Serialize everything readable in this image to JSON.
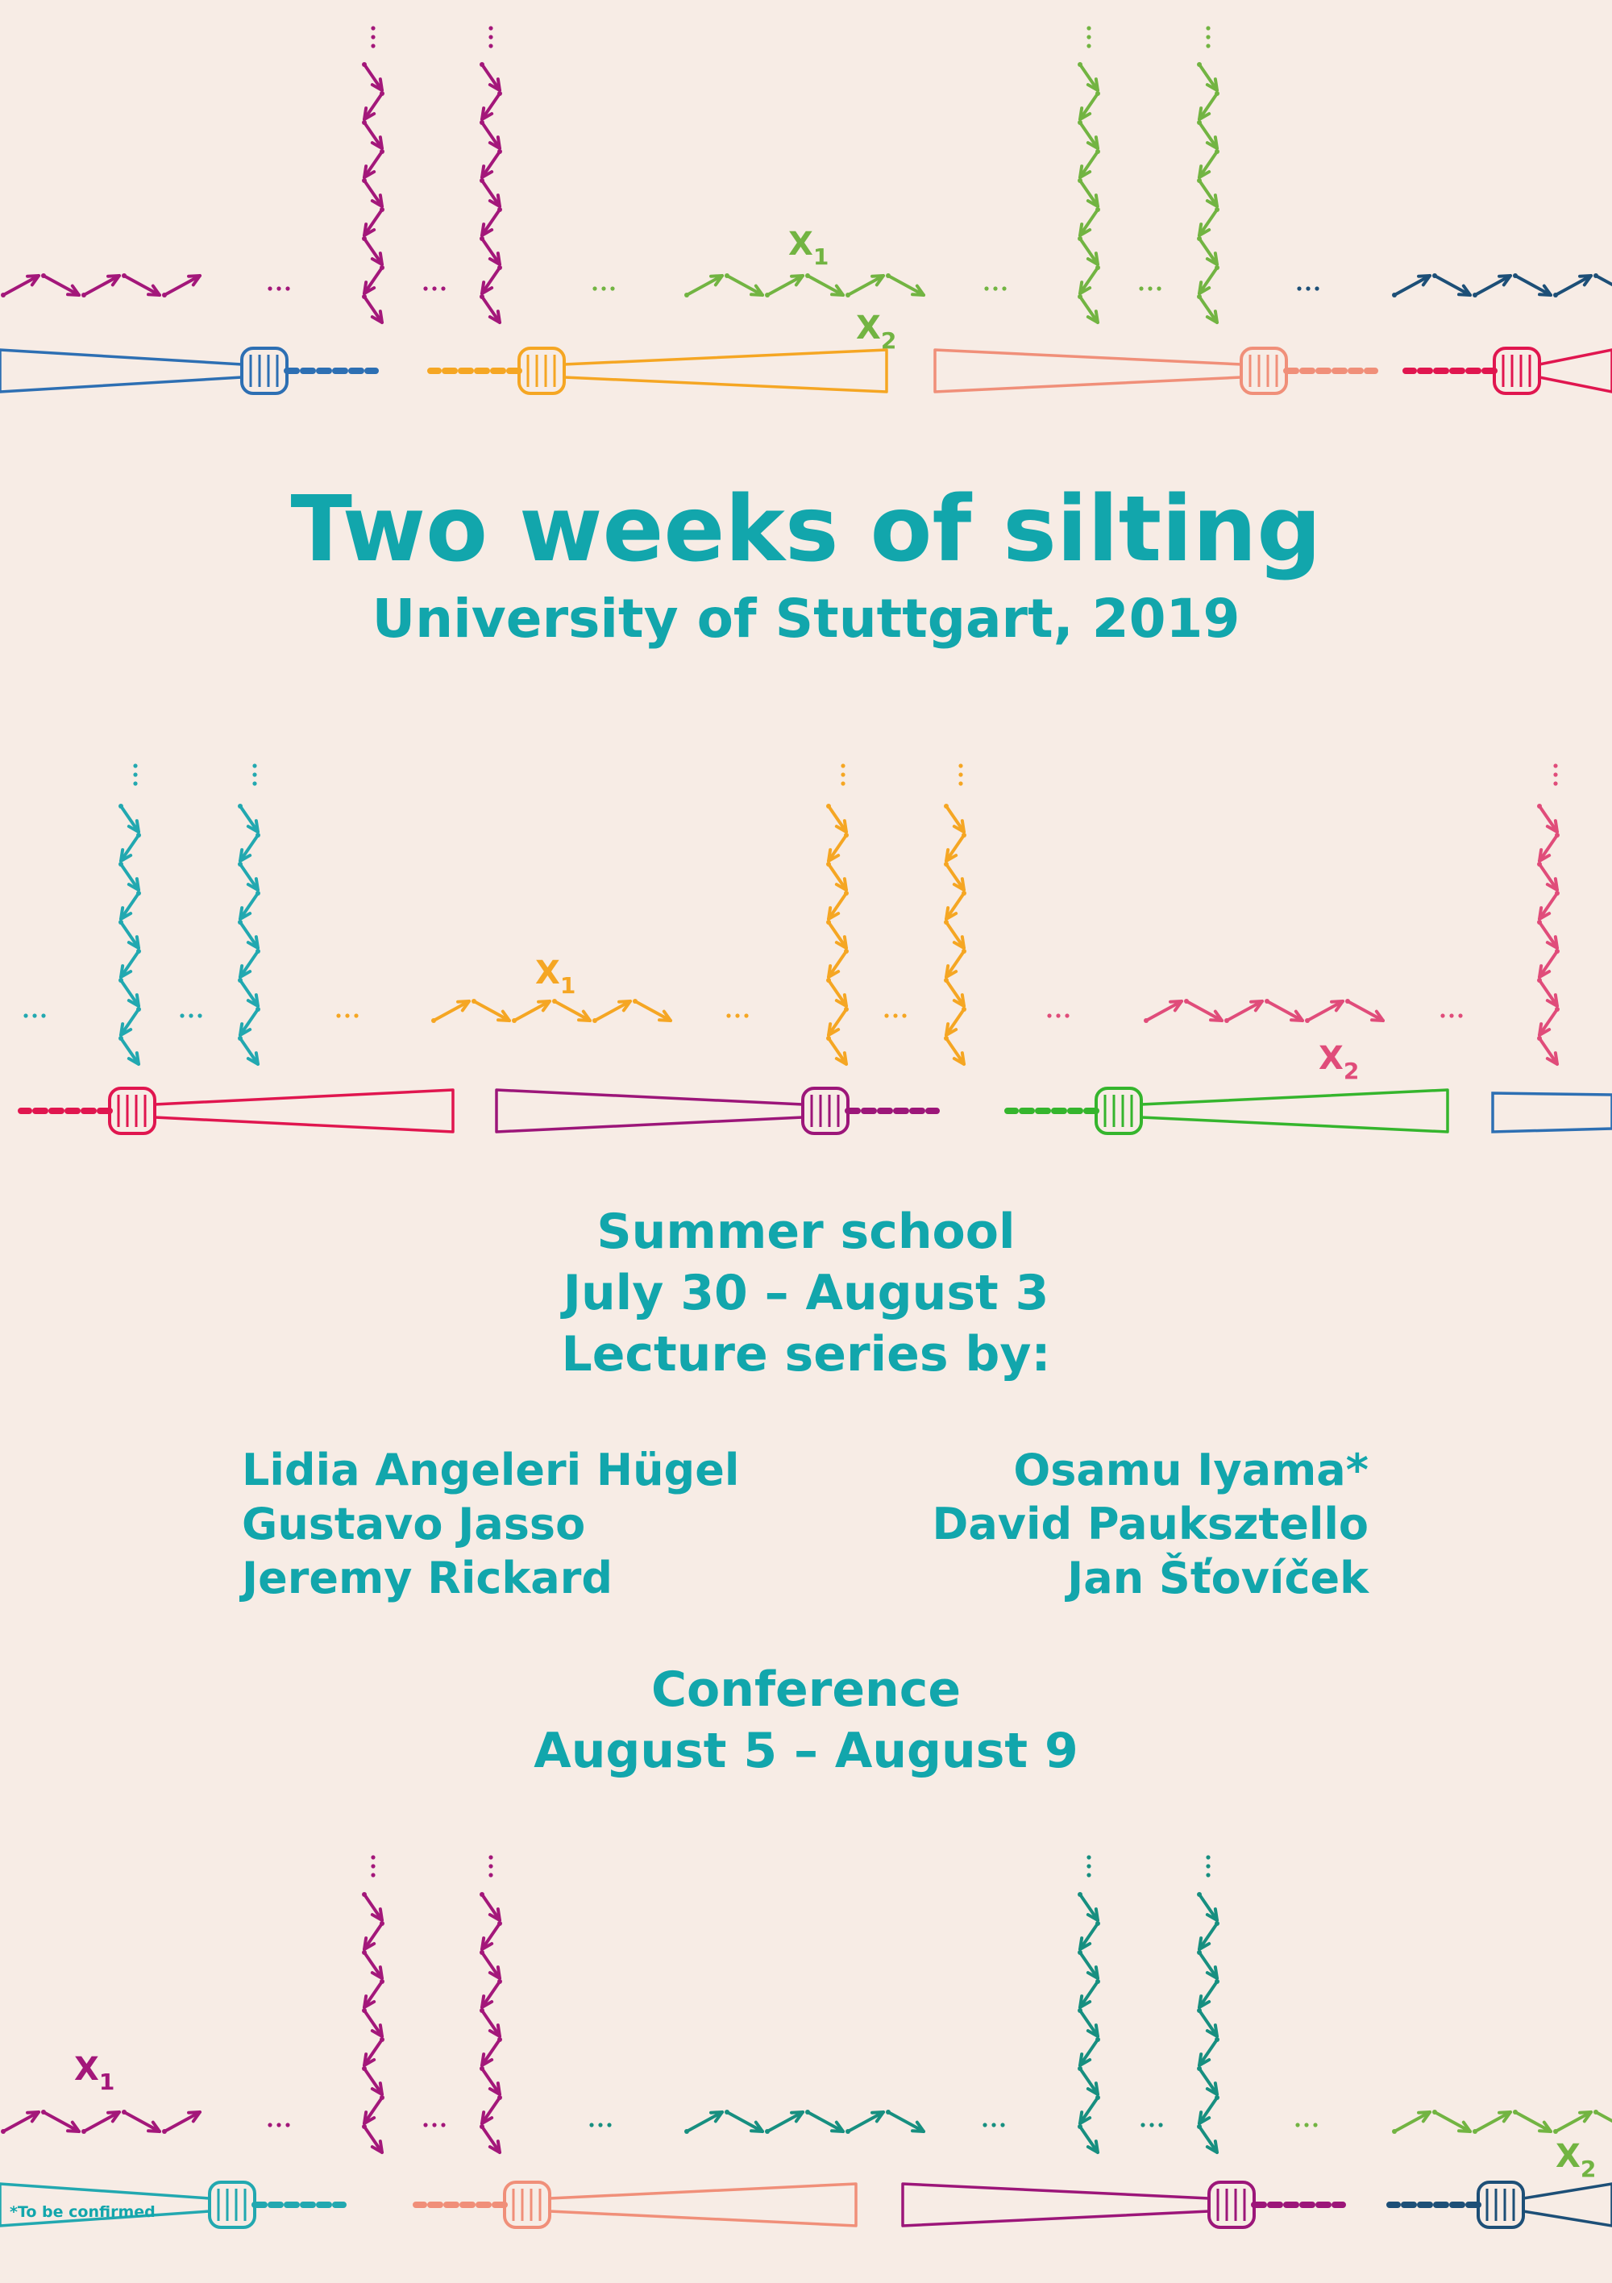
{
  "poster": {
    "title": "Two weeks of silting",
    "subtitle": "University of Stuttgart, 2019",
    "summer_school": {
      "heading": "Summer school",
      "dates": "July 30 – August 3",
      "lectures_heading": "Lecture series by:"
    },
    "lecturers_left": [
      "Lidia Angeleri Hügel",
      "Gustavo Jasso",
      "Jeremy Rickard"
    ],
    "lecturers_right": [
      "Osamu Iyama*",
      "David Pauksztello",
      "Jan Šťovíček"
    ],
    "conference": {
      "heading": "Conference",
      "dates": "August 5 – August 9"
    },
    "footnote": "*To be confirmed",
    "quiver_labels": {
      "x1": "X",
      "x1_sub": "1",
      "x2": "X",
      "x2_sub": "2"
    }
  },
  "colors": {
    "background": "#f7ece5",
    "text": "#12a6ac",
    "magenta": "#a3177a",
    "green": "#72b442",
    "navy": "#1d4f77",
    "teal": "#22a8b0",
    "orange": "#f5a623",
    "pink": "#e04c7a",
    "blue": "#2d6fb3",
    "salmon": "#f08f79",
    "red": "#e0164f",
    "purple": "#9c1679",
    "bright_green": "#35b52d",
    "sea_green": "#178f80"
  },
  "icons": [
    "tv-tower-icon",
    "quiver-arrow-icon"
  ]
}
